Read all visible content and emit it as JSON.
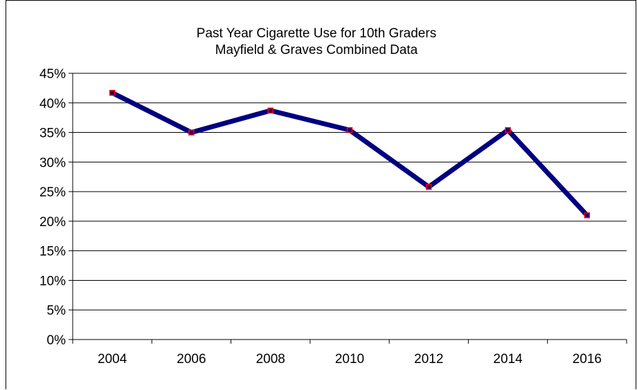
{
  "chart_data": {
    "type": "line",
    "title": "Past Year Cigarette Use for 10th Graders",
    "subtitle": "Mayfield & Graves Combined Data",
    "categories": [
      "2004",
      "2006",
      "2008",
      "2010",
      "2012",
      "2014",
      "2016"
    ],
    "series": [
      {
        "values": [
          0.417,
          0.35,
          0.387,
          0.354,
          0.258,
          0.354,
          0.21
        ]
      }
    ],
    "y_ticks": [
      "0%",
      "5%",
      "10%",
      "15%",
      "20%",
      "25%",
      "30%",
      "35%",
      "40%",
      "45%"
    ],
    "ylim": [
      0,
      0.45
    ],
    "grid": true,
    "legend": "none",
    "colors": {
      "line": "#000080",
      "marker_edge": "#ff0000",
      "marker_fill": "#000080"
    }
  }
}
